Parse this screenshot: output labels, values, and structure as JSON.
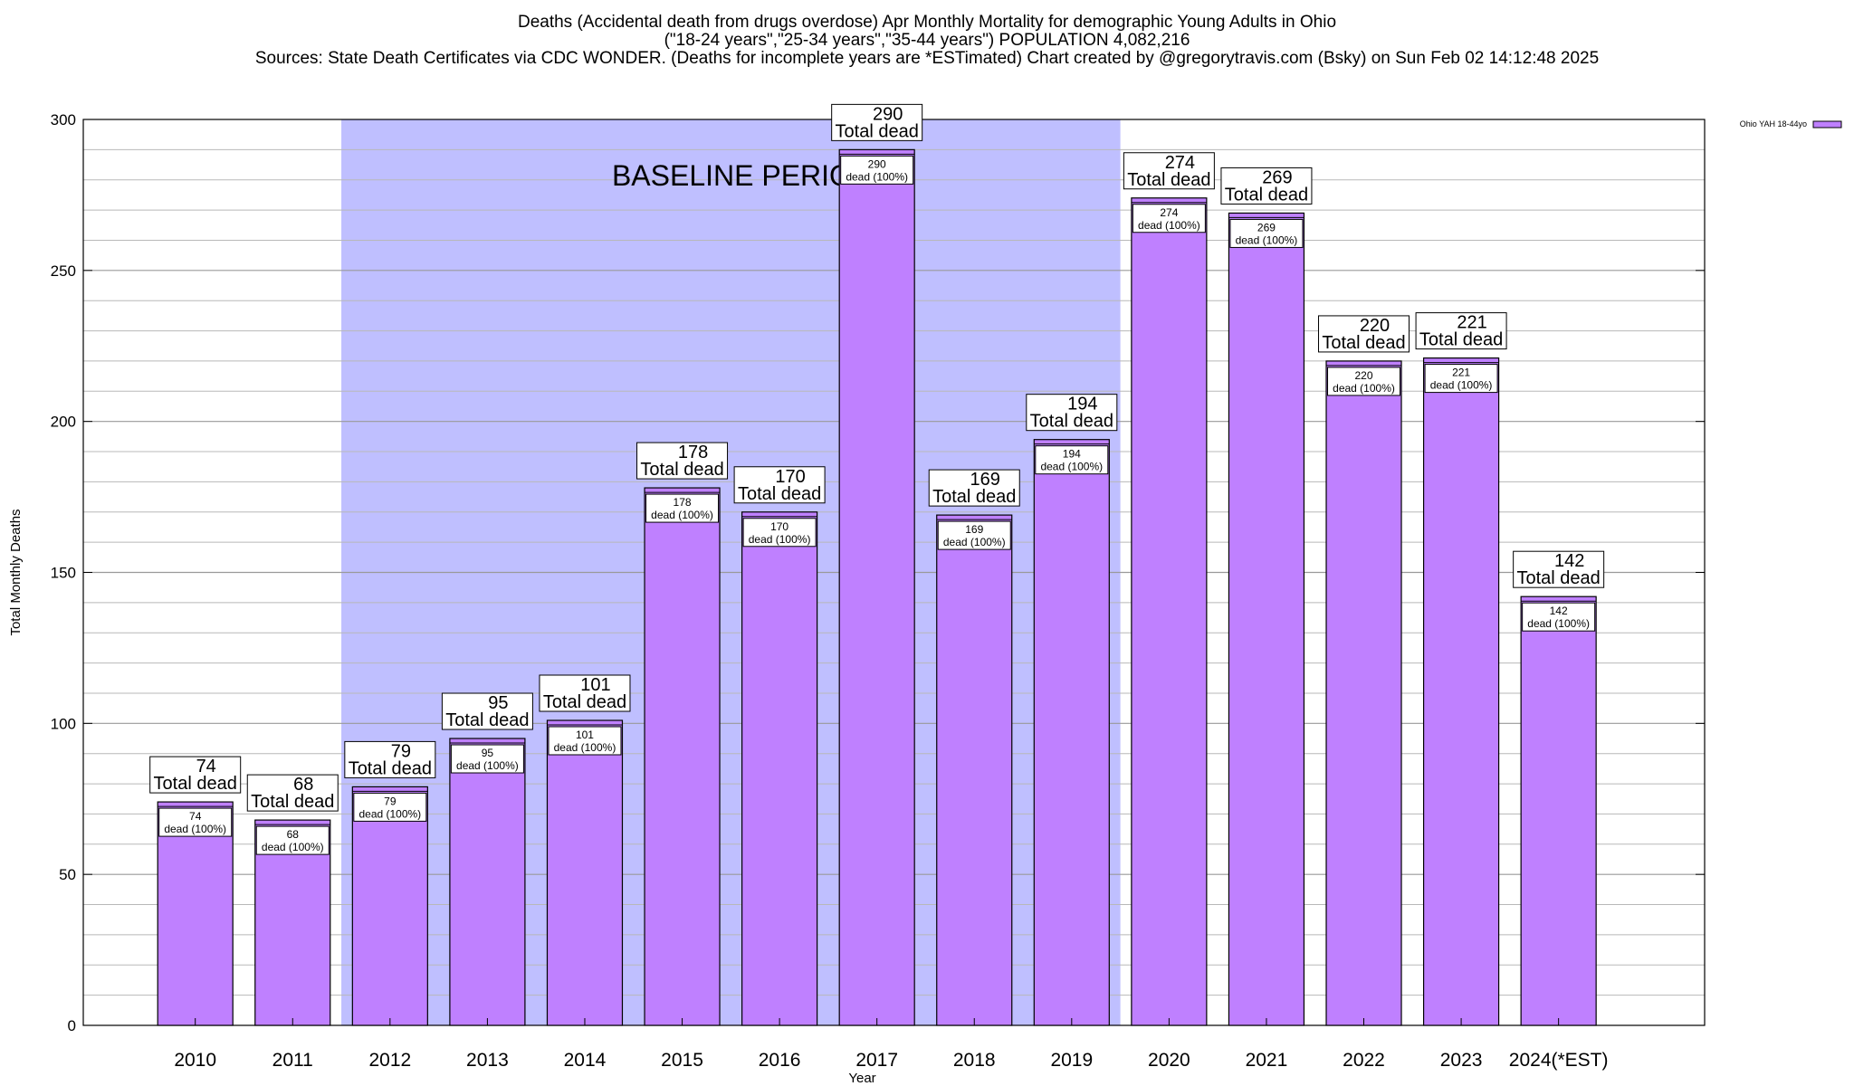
{
  "chart_data": {
    "type": "bar",
    "title_lines": [
      "Deaths (Accidental death from drugs overdose) Apr Monthly Mortality for demographic Young Adults in Ohio",
      "(\"18-24 years\",\"25-34 years\",\"35-44 years\") POPULATION 4,082,216",
      "Sources: State Death Certificates via CDC WONDER. (Deaths for incomplete years are *ESTimated)                Chart created by @gregorytravis.com (Bsky) on Sun Feb 02 14:12:48 2025"
    ],
    "xlabel": "Year",
    "ylabel": "Total Monthly Deaths",
    "ylim": [
      0,
      300
    ],
    "yticks": [
      0,
      50,
      100,
      150,
      200,
      250,
      300
    ],
    "categories": [
      "2010",
      "2011",
      "2012",
      "2013",
      "2014",
      "2015",
      "2016",
      "2017",
      "2018",
      "2019",
      "2020",
      "2021",
      "2022",
      "2023",
      "2024(*EST)"
    ],
    "series": [
      {
        "name": "Ohio YAH 18-44yo",
        "color": "#bf80ff",
        "values": [
          74,
          68,
          79,
          95,
          101,
          178,
          170,
          290,
          169,
          194,
          274,
          269,
          220,
          221,
          142
        ]
      }
    ],
    "total_label_text": "Total dead",
    "inner_label_suffix": "dead (100%)",
    "baseline": {
      "label": "BASELINE PERIOD",
      "from_category": "2012",
      "to_category": "2019",
      "color": "#bfbfff"
    },
    "grid": true,
    "grid_minor_step": 10,
    "legend_position": "top-right"
  }
}
